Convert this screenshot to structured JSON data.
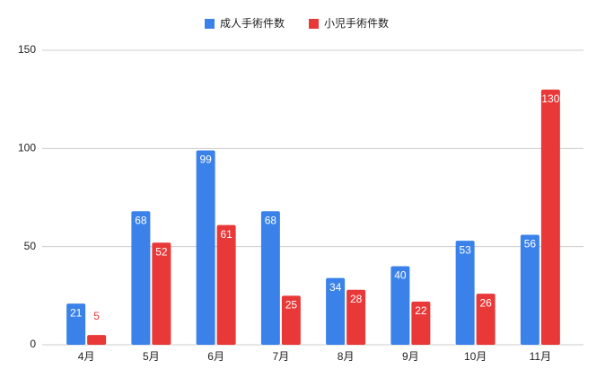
{
  "chart_data": {
    "type": "bar",
    "categories": [
      "4月",
      "5月",
      "6月",
      "7月",
      "8月",
      "9月",
      "10月",
      "11月"
    ],
    "series": [
      {
        "name": "成人手術件数",
        "color": "#3a82ea",
        "values": [
          21,
          68,
          99,
          68,
          34,
          40,
          53,
          56
        ]
      },
      {
        "name": "小児手術件数",
        "color": "#e83838",
        "values": [
          5,
          52,
          61,
          25,
          28,
          22,
          26,
          130
        ]
      }
    ],
    "ylim": [
      0,
      150
    ],
    "yticks": [
      0,
      50,
      100,
      150
    ],
    "grid": true,
    "legend": "top"
  }
}
